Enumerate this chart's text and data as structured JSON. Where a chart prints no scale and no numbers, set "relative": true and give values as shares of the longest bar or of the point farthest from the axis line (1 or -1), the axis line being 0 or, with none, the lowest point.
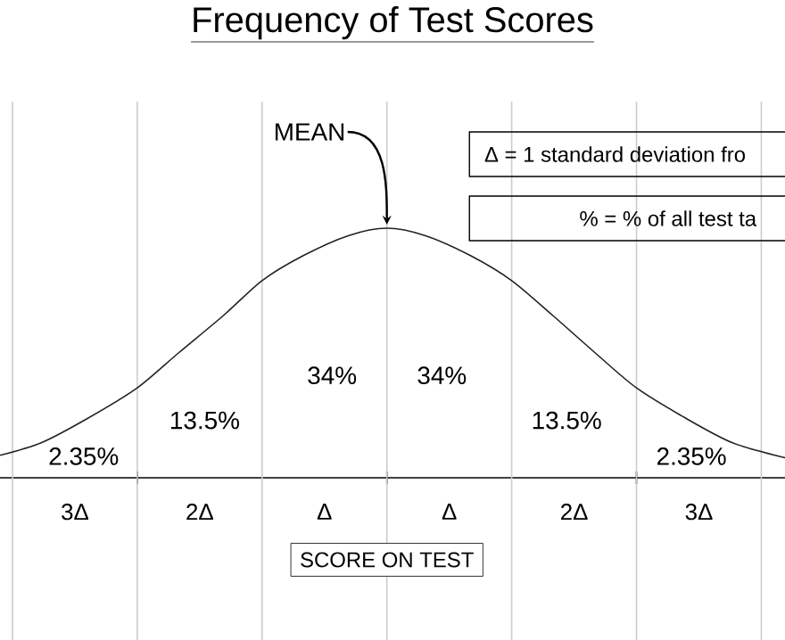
{
  "chart_data": {
    "type": "line",
    "title": "Frequency of Test Scores",
    "xlabel": "SCORE ON TEST",
    "relative": true,
    "x": [
      -3.1,
      -2.77,
      -2.39,
      -2.0,
      -1.67,
      -1.31,
      -1.0,
      -0.67,
      -0.31,
      0,
      0.31,
      0.67,
      1.0,
      1.33,
      1.67,
      2.0,
      2.39,
      2.77,
      3.19
    ],
    "series": [
      {
        "color": "#222222",
        "values": [
          0.09,
          0.14,
          0.24,
          0.36,
          0.5,
          0.65,
          0.79,
          0.89,
          0.97,
          1,
          0.97,
          0.89,
          0.79,
          0.65,
          0.5,
          0.36,
          0.24,
          0.14,
          0.08
        ]
      }
    ],
    "xlim": [
      -3.1,
      3.19
    ],
    "xticks": [
      {
        "value": -2,
        "label": null
      },
      {
        "value": 0,
        "label": null
      },
      {
        "value": 2,
        "label": null
      },
      {
        "value": -2.5,
        "label": "3Δ"
      },
      {
        "value": -1.5,
        "label": "2Δ"
      },
      {
        "value": -0.5,
        "label": "Δ"
      },
      {
        "value": 0.5,
        "label": "Δ"
      },
      {
        "value": 1.5,
        "label": "2Δ"
      },
      {
        "value": 2.5,
        "label": "3Δ"
      }
    ],
    "marker": "none",
    "line_style": "solid",
    "ref_lines": [
      {
        "axis": "x",
        "value": -3,
        "color": "#cccccc"
      },
      {
        "axis": "x",
        "value": -2,
        "color": "#cccccc"
      },
      {
        "axis": "x",
        "value": -1,
        "color": "#cccccc"
      },
      {
        "axis": "x",
        "value": 0,
        "color": "#cccccc"
      },
      {
        "axis": "x",
        "value": 1,
        "color": "#cccccc"
      },
      {
        "axis": "x",
        "value": 2,
        "color": "#cccccc"
      },
      {
        "axis": "x",
        "value": 3,
        "color": "#cccccc"
      }
    ],
    "annotations": [
      {
        "text": "MEAN",
        "x": 0,
        "y": 1
      },
      "Δ = 1 standard deviation fro",
      "% = % of all test ta",
      "2.35%",
      "13.5%",
      "34%",
      "34%",
      "13.5%",
      "2.35%"
    ]
  }
}
